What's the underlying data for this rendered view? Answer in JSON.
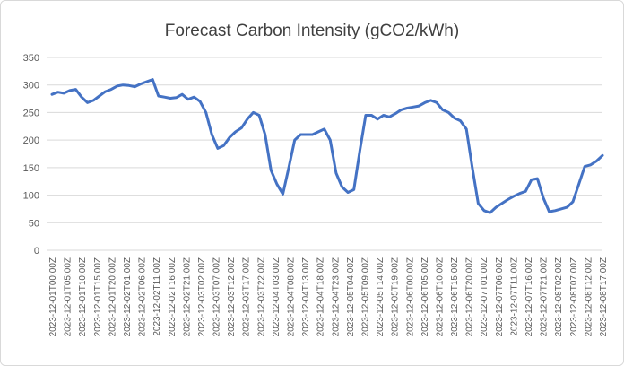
{
  "chart_data": {
    "type": "line",
    "title": "Forecast Carbon Intensity (gCO2/kWh)",
    "xlabel": "",
    "ylabel": "",
    "ylim": [
      0,
      350
    ],
    "yticks": [
      0,
      50,
      100,
      150,
      200,
      250,
      300,
      350
    ],
    "grid": true,
    "legend": "none",
    "line_color": "#4472C4",
    "x_tick_labels": [
      "2023-12-01T00:00Z",
      "2023-12-01T05:00Z",
      "2023-12-01T10:00Z",
      "2023-12-01T15:00Z",
      "2023-12-01T20:00Z",
      "2023-12-02T01:00Z",
      "2023-12-02T06:00Z",
      "2023-12-02T11:00Z",
      "2023-12-02T16:00Z",
      "2023-12-02T21:00Z",
      "2023-12-03T02:00Z",
      "2023-12-03T07:00Z",
      "2023-12-03T12:00Z",
      "2023-12-03T17:00Z",
      "2023-12-03T22:00Z",
      "2023-12-04T03:00Z",
      "2023-12-04T08:00Z",
      "2023-12-04T13:00Z",
      "2023-12-04T18:00Z",
      "2023-12-04T23:00Z",
      "2023-12-05T04:00Z",
      "2023-12-05T09:00Z",
      "2023-12-05T14:00Z",
      "2023-12-05T19:00Z",
      "2023-12-06T00:00Z",
      "2023-12-06T05:00Z",
      "2023-12-06T10:00Z",
      "2023-12-06T15:00Z",
      "2023-12-06T20:00Z",
      "2023-12-07T01:00Z",
      "2023-12-07T06:00Z",
      "2023-12-07T11:00Z",
      "2023-12-07T16:00Z",
      "2023-12-07T21:00Z",
      "2023-12-08T02:00Z",
      "2023-12-08T07:00Z",
      "2023-12-08T12:00Z",
      "2023-12-08T17:00Z"
    ],
    "x_hours": [
      0,
      2,
      4,
      6,
      8,
      10,
      12,
      14,
      16,
      18,
      20,
      22,
      24,
      26,
      28,
      30,
      32,
      34,
      36,
      38,
      40,
      42,
      44,
      46,
      48,
      50,
      52,
      54,
      56,
      58,
      60,
      62,
      64,
      66,
      68,
      70,
      72,
      74,
      76,
      78,
      80,
      82,
      84,
      86,
      88,
      90,
      92,
      94,
      96,
      98,
      100,
      102,
      104,
      106,
      108,
      110,
      112,
      114,
      116,
      118,
      120,
      122,
      124,
      126,
      128,
      130,
      132,
      134,
      136,
      138,
      140,
      142,
      144,
      146,
      148,
      150,
      152,
      154,
      156,
      158,
      160,
      162,
      164,
      166,
      168,
      170,
      172,
      174,
      176,
      178,
      180,
      182,
      184,
      186
    ],
    "values": [
      283,
      287,
      285,
      290,
      292,
      278,
      268,
      272,
      280,
      288,
      292,
      298,
      300,
      299,
      297,
      302,
      306,
      310,
      280,
      278,
      276,
      277,
      283,
      274,
      278,
      270,
      250,
      210,
      185,
      190,
      205,
      215,
      222,
      238,
      250,
      245,
      210,
      145,
      120,
      102,
      150,
      200,
      210,
      210,
      210,
      215,
      220,
      200,
      140,
      115,
      105,
      110,
      180,
      245,
      245,
      238,
      245,
      242,
      248,
      255,
      258,
      260,
      262,
      268,
      272,
      268,
      255,
      250,
      240,
      235,
      220,
      150,
      85,
      72,
      68,
      78,
      85,
      92,
      98,
      103,
      107,
      128,
      130,
      95,
      70,
      72,
      75,
      78,
      88,
      120,
      152,
      155,
      162,
      172
    ]
  }
}
